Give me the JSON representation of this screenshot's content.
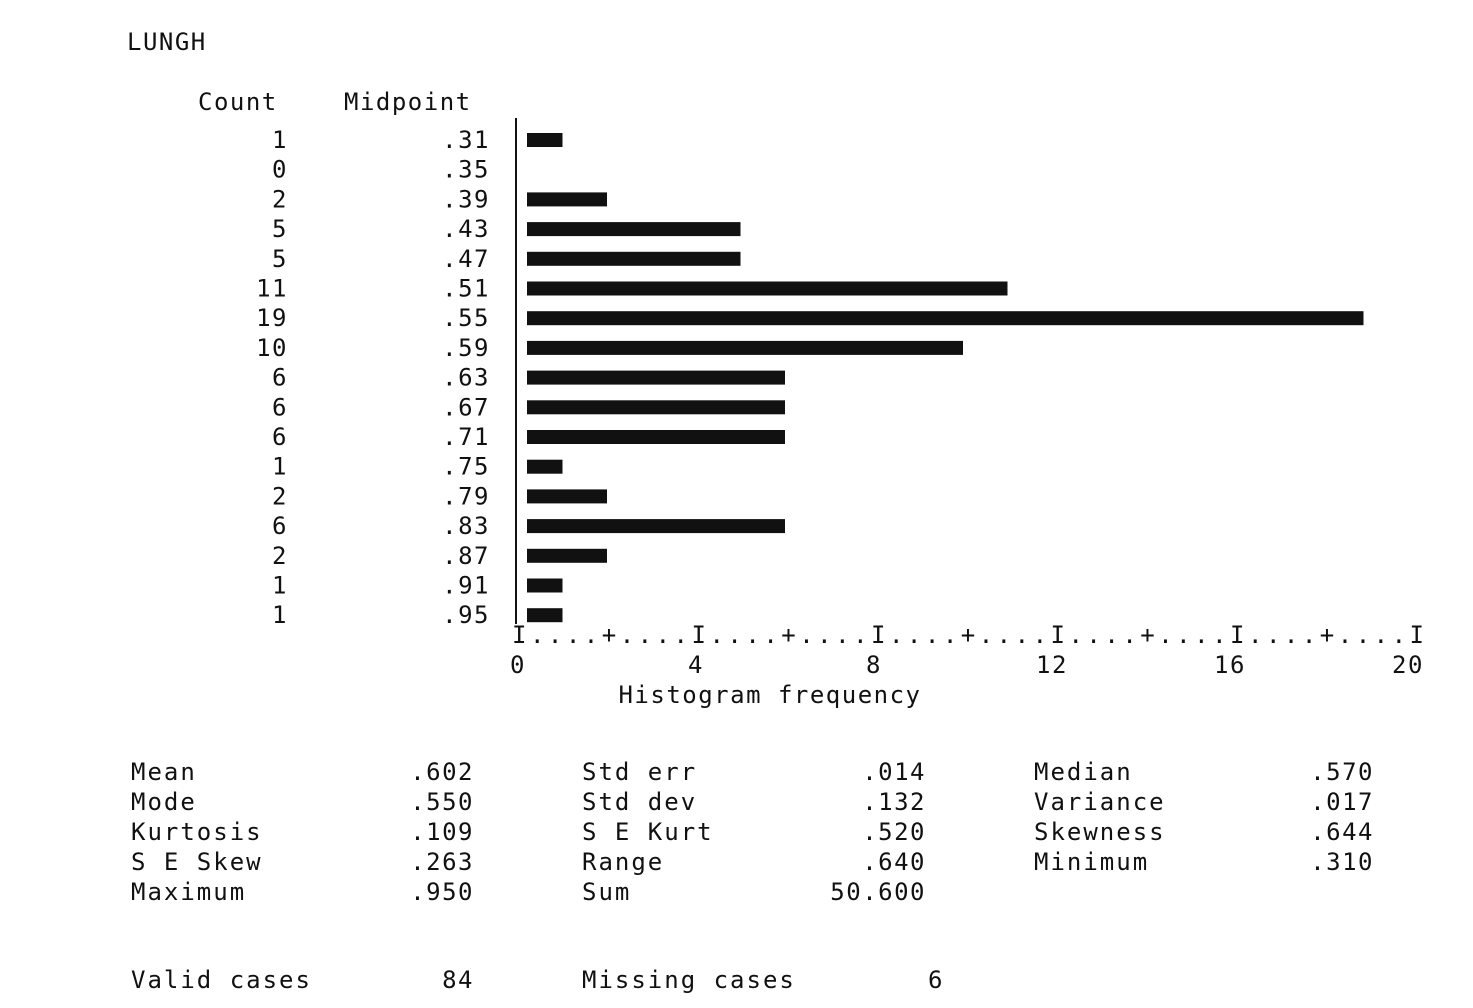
{
  "chart_data": {
    "type": "bar",
    "orientation": "horizontal",
    "title": "LUNGH",
    "column_headers": {
      "count": "Count",
      "midpoint": "Midpoint"
    },
    "categories": [
      ".31",
      ".35",
      ".39",
      ".43",
      ".47",
      ".51",
      ".55",
      ".59",
      ".63",
      ".67",
      ".71",
      ".75",
      ".79",
      ".83",
      ".87",
      ".91",
      ".95"
    ],
    "counts": [
      "1",
      "0",
      "2",
      "5",
      "5",
      "11",
      "19",
      "10",
      "6",
      "6",
      "6",
      "1",
      "2",
      "6",
      "2",
      "1",
      "1"
    ],
    "values": [
      1,
      0,
      2,
      5,
      5,
      11,
      19,
      10,
      6,
      6,
      6,
      1,
      2,
      6,
      2,
      1,
      1
    ],
    "xlabel": "Histogram frequency",
    "xlim": [
      0,
      20
    ],
    "ruler": "I....+....I....+....I....+....I....+....I....+....I",
    "xticks": [
      "0",
      "4",
      "8",
      "12",
      "16",
      "20"
    ],
    "grid": false
  },
  "statistics": [
    {
      "label": "Mean",
      "value": ".602"
    },
    {
      "label": "Std err",
      "value": ".014"
    },
    {
      "label": "Median",
      "value": ".570"
    },
    {
      "label": "Mode",
      "value": ".550"
    },
    {
      "label": "Std dev",
      "value": ".132"
    },
    {
      "label": "Variance",
      "value": ".017"
    },
    {
      "label": "Kurtosis",
      "value": ".109"
    },
    {
      "label": "S E Kurt",
      "value": ".520"
    },
    {
      "label": "Skewness",
      "value": ".644"
    },
    {
      "label": "S E Skew",
      "value": ".263"
    },
    {
      "label": "Range",
      "value": ".640"
    },
    {
      "label": "Minimum",
      "value": ".310"
    },
    {
      "label": "Maximum",
      "value": ".950"
    },
    {
      "label": "Sum",
      "value": "50.600"
    }
  ],
  "cases": {
    "valid_label": "Valid cases",
    "valid_value": "84",
    "missing_label": "Missing cases",
    "missing_value": "6"
  },
  "colors": {
    "bar": "#111111",
    "background": "#ffffff"
  }
}
